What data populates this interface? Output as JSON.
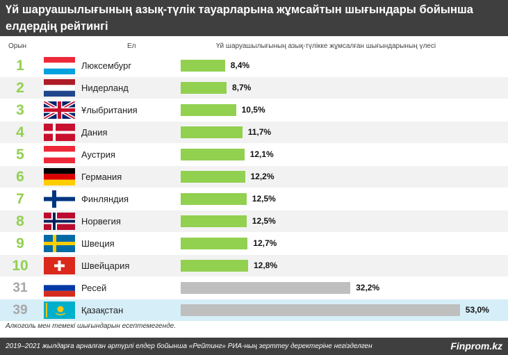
{
  "title": "Үй шаруашылығының азық-түлік тауарларына жұмсайтын шығындары бойынша елдердің рейтингі",
  "columns": {
    "rank": "Орын",
    "country": "Ел",
    "share": "Үй шаруашылығының азық-түлікке жұмсалған шығындарының үлесі"
  },
  "note": "Алкоголь мен темекі шығындарын есептемегенде.",
  "source": "2019–2021 жылдарға арналған әртүрлі елдер бойынша «Рейтинг» РИА-ның зерттеу деректеріне негізделген",
  "brand": "Finprom.kz",
  "colors": {
    "header_bg": "#3f3f3f",
    "top_bar": "#92d050",
    "other_bar": "#bfbfbf",
    "top_rank": "#92d050",
    "other_rank": "#a6a6a6",
    "kz_row_bg": "#d6eef7"
  },
  "chart_data": {
    "type": "bar",
    "orientation": "horizontal",
    "xlim": [
      0,
      55
    ],
    "unit": "%",
    "rows": [
      {
        "rank": "1",
        "country": "Люксембург",
        "value": 8.4,
        "label": "8,4%",
        "flag": "luxembourg-flag",
        "group": "top"
      },
      {
        "rank": "2",
        "country": "Нидерланд",
        "value": 8.7,
        "label": "8,7%",
        "flag": "netherlands-flag",
        "group": "top"
      },
      {
        "rank": "3",
        "country": "Ұлыбритания",
        "value": 10.5,
        "label": "10,5%",
        "flag": "uk-flag",
        "group": "top"
      },
      {
        "rank": "4",
        "country": "Дания",
        "value": 11.7,
        "label": "11,7%",
        "flag": "denmark-flag",
        "group": "top"
      },
      {
        "rank": "5",
        "country": "Аустрия",
        "value": 12.1,
        "label": "12,1%",
        "flag": "austria-flag",
        "group": "top"
      },
      {
        "rank": "6",
        "country": "Германия",
        "value": 12.2,
        "label": "12,2%",
        "flag": "germany-flag",
        "group": "top"
      },
      {
        "rank": "7",
        "country": "Финляндия",
        "value": 12.5,
        "label": "12,5%",
        "flag": "finland-flag",
        "group": "top"
      },
      {
        "rank": "8",
        "country": "Норвегия",
        "value": 12.5,
        "label": "12,5%",
        "flag": "norway-flag",
        "group": "top"
      },
      {
        "rank": "9",
        "country": "Швеция",
        "value": 12.7,
        "label": "12,7%",
        "flag": "sweden-flag",
        "group": "top"
      },
      {
        "rank": "10",
        "country": "Швейцария",
        "value": 12.8,
        "label": "12,8%",
        "flag": "switzerland-flag",
        "group": "top"
      },
      {
        "rank": "31",
        "country": "Ресей",
        "value": 32.2,
        "label": "32,2%",
        "flag": "russia-flag",
        "group": "other"
      },
      {
        "rank": "39",
        "country": "Қазақстан",
        "value": 53.0,
        "label": "53,0%",
        "flag": "kazakhstan-flag",
        "group": "other",
        "highlight": true
      }
    ]
  }
}
